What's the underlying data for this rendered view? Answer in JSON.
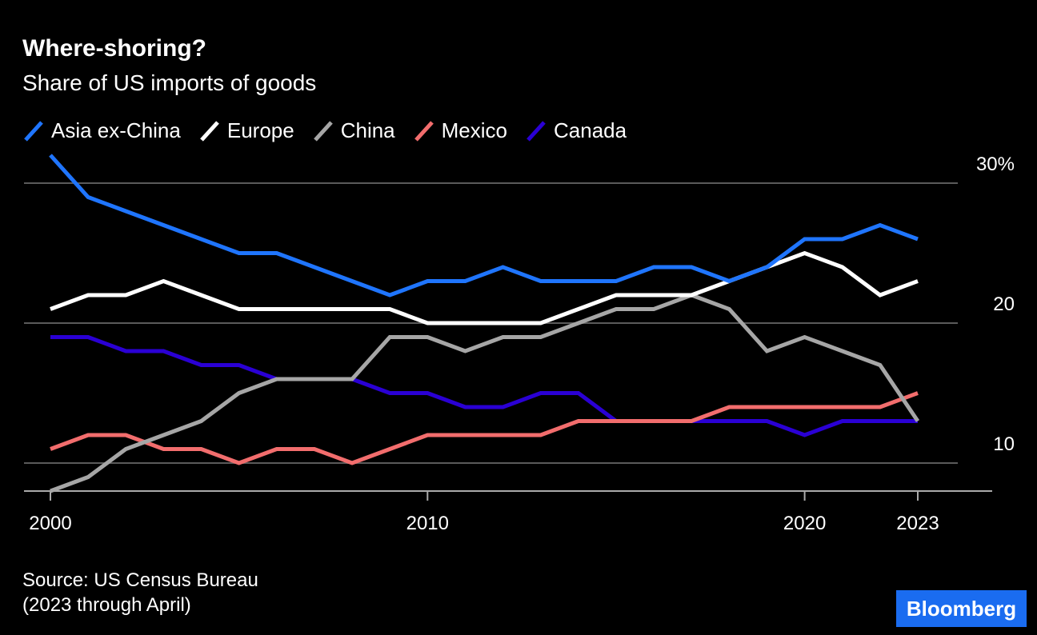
{
  "chart_data": {
    "type": "line",
    "title": "Where-shoring?",
    "subtitle": "Share of US imports of goods",
    "x": [
      2000,
      2001,
      2002,
      2003,
      2004,
      2005,
      2006,
      2007,
      2008,
      2009,
      2010,
      2011,
      2012,
      2013,
      2014,
      2015,
      2016,
      2017,
      2018,
      2019,
      2020,
      2021,
      2022,
      2023
    ],
    "xticks": [
      {
        "value": 2000,
        "label": "2000"
      },
      {
        "value": 2010,
        "label": "2010"
      },
      {
        "value": 2020,
        "label": "2020"
      },
      {
        "value": 2023,
        "label": "2023"
      }
    ],
    "yticks": [
      {
        "value": 30,
        "label": "30%"
      },
      {
        "value": 20,
        "label": "20"
      },
      {
        "value": 10,
        "label": "10"
      }
    ],
    "ylim": [
      8,
      32
    ],
    "xlim": [
      2000,
      2023
    ],
    "grid": true,
    "legend_position": "top-left",
    "series": [
      {
        "name": "Asia ex-China",
        "color": "#1f75fe",
        "values": [
          32,
          29,
          28,
          27,
          26,
          25,
          25,
          24,
          23,
          22,
          23,
          23,
          24,
          23,
          23,
          23,
          24,
          24,
          23,
          24,
          26,
          26,
          27,
          26
        ]
      },
      {
        "name": "Europe",
        "color": "#ffffff",
        "values": [
          21,
          22,
          22,
          23,
          22,
          21,
          21,
          21,
          21,
          21,
          20,
          20,
          20,
          20,
          21,
          22,
          22,
          22,
          23,
          24,
          25,
          24,
          22,
          23
        ]
      },
      {
        "name": "China",
        "color": "#a6a6a6",
        "values": [
          8,
          9,
          11,
          12,
          13,
          15,
          16,
          16,
          16,
          19,
          19,
          18,
          19,
          19,
          20,
          21,
          21,
          22,
          21,
          18,
          19,
          18,
          17,
          13
        ]
      },
      {
        "name": "Mexico",
        "color": "#f26d6d",
        "values": [
          11,
          12,
          12,
          11,
          11,
          10,
          11,
          11,
          10,
          11,
          12,
          12,
          12,
          12,
          13,
          13,
          13,
          13,
          14,
          14,
          14,
          14,
          14,
          15
        ]
      },
      {
        "name": "Canada",
        "color": "#2a00d4",
        "values": [
          19,
          19,
          18,
          18,
          17,
          17,
          16,
          16,
          16,
          15,
          15,
          14,
          14,
          15,
          15,
          13,
          13,
          13,
          13,
          13,
          12,
          13,
          13,
          13
        ]
      }
    ]
  },
  "source": {
    "line1": "Source: US Census Bureau",
    "line2": "(2023 through April)"
  },
  "logo": "Bloomberg"
}
